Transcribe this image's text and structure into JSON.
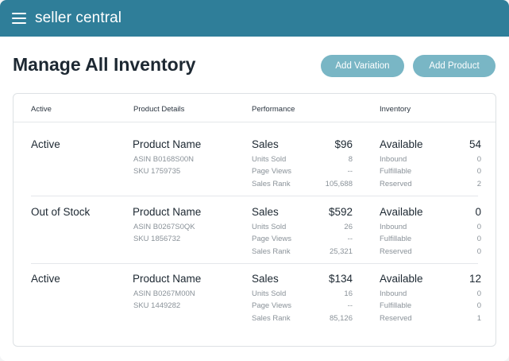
{
  "header": {
    "brand": "seller central",
    "menu_icon": "hamburger-menu-icon"
  },
  "page": {
    "title": "Manage All Inventory",
    "add_variation_label": "Add Variation",
    "add_product_label": "Add Product"
  },
  "table": {
    "columns": [
      "Active",
      "Product Details",
      "Performance",
      "Inventory"
    ],
    "rows": [
      {
        "status": "Active",
        "product_name": "Product Name",
        "asin": "ASIN B0168S00N",
        "sku": "SKU 1759735",
        "sales_label": "Sales",
        "sales_value": "$96",
        "units_sold_label": "Units Sold",
        "units_sold": "8",
        "page_views_label": "Page Views",
        "page_views": "--",
        "sales_rank_label": "Sales Rank",
        "sales_rank": "105,688",
        "available_label": "Available",
        "available": "54",
        "inbound_label": "Inbound",
        "inbound": "0",
        "fulfillable_label": "Fulfillable",
        "fulfillable": "0",
        "reserved_label": "Reserved",
        "reserved": "2"
      },
      {
        "status": "Out of Stock",
        "product_name": "Product Name",
        "asin": "ASIN B0267S0QK",
        "sku": "SKU 1856732",
        "sales_label": "Sales",
        "sales_value": "$592",
        "units_sold_label": "Units Sold",
        "units_sold": "26",
        "page_views_label": "Page Views",
        "page_views": "--",
        "sales_rank_label": "Sales Rank",
        "sales_rank": "25,321",
        "available_label": "Available",
        "available": "0",
        "inbound_label": "Inbound",
        "inbound": "0",
        "fulfillable_label": "Fulfillable",
        "fulfillable": "0",
        "reserved_label": "Reserved",
        "reserved": "0"
      },
      {
        "status": "Active",
        "product_name": "Product Name",
        "asin": "ASIN B0267M00N",
        "sku": "SKU 1449282",
        "sales_label": "Sales",
        "sales_value": "$134",
        "units_sold_label": "Units Sold",
        "units_sold": "16",
        "page_views_label": "Page Views",
        "page_views": "--",
        "sales_rank_label": "Sales Rank",
        "sales_rank": "85,126",
        "available_label": "Available",
        "available": "12",
        "inbound_label": "Inbound",
        "inbound": "0",
        "fulfillable_label": "Fulfillable",
        "fulfillable": "0",
        "reserved_label": "Reserved",
        "reserved": "1"
      }
    ]
  },
  "colors": {
    "header_bg": "#2f7e99",
    "button_bg": "#79b6c5",
    "text_primary": "#1d2832",
    "text_secondary": "#8a9299"
  }
}
